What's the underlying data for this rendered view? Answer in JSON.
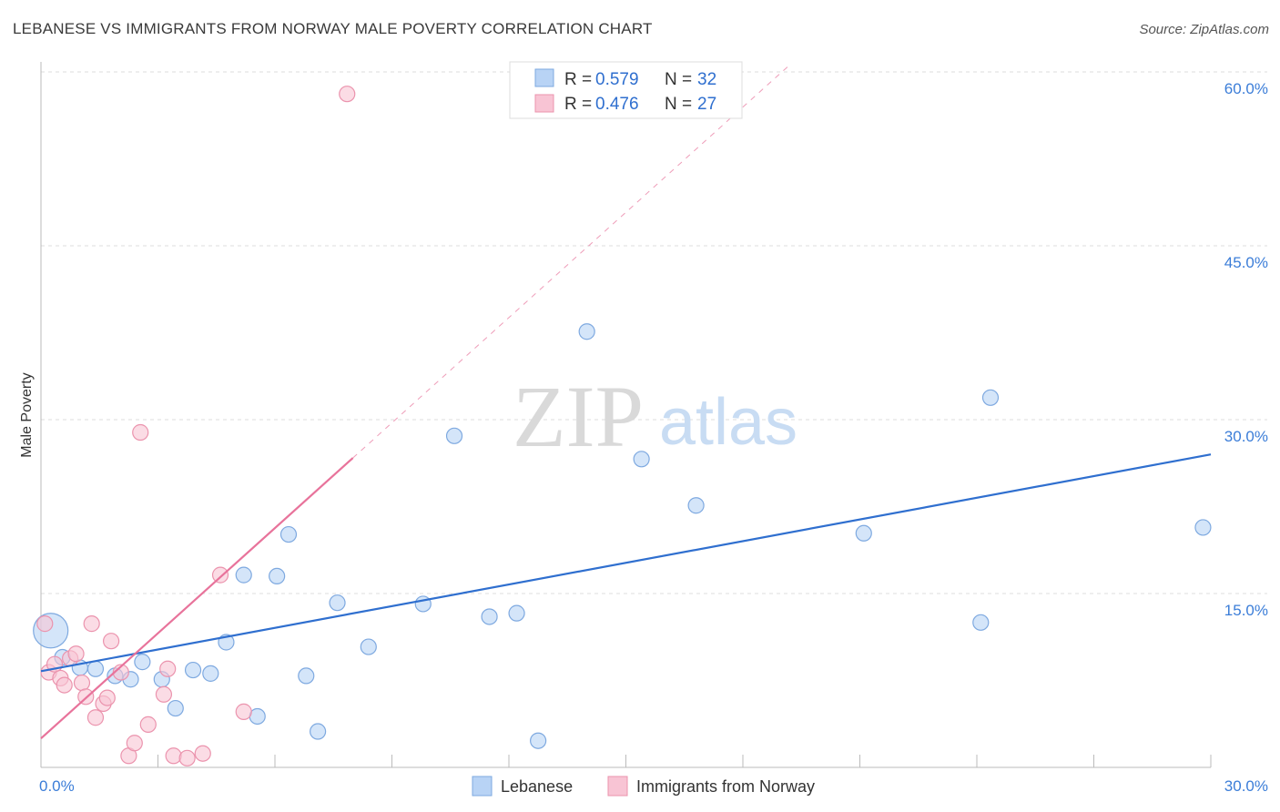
{
  "header": {
    "title": "LEBANESE VS IMMIGRANTS FROM NORWAY MALE POVERTY CORRELATION CHART",
    "source": "Source: ZipAtlas.com"
  },
  "watermark": {
    "zip": "ZIP",
    "atlas": "atlas"
  },
  "colors": {
    "blue_fill": "#b8d3f5",
    "blue_stroke": "#7ea9e0",
    "blue_line": "#2f6fcf",
    "pink_fill": "#f8c4d4",
    "pink_stroke": "#eb93ad",
    "pink_line": "#e8739b",
    "tick_text": "#3b7dd8",
    "grid": "#dcdcdc"
  },
  "chart_data": {
    "type": "scatter",
    "title": "LEBANESE VS IMMIGRANTS FROM NORWAY MALE POVERTY CORRELATION CHART",
    "xlabel": "",
    "ylabel": "Male Poverty",
    "xlim": [
      0,
      30
    ],
    "ylim": [
      0,
      60
    ],
    "x_tick_labels": [
      "0.0%",
      "30.0%"
    ],
    "y_ticks": [
      {
        "value": 15,
        "label": "15.0%"
      },
      {
        "value": 30,
        "label": "30.0%"
      },
      {
        "value": 45,
        "label": "45.0%"
      },
      {
        "value": 60,
        "label": "60.0%"
      }
    ],
    "legend": [
      {
        "name": "Lebanese",
        "r_label": "R = ",
        "r": "0.579",
        "n_label": "N = ",
        "n": "32"
      },
      {
        "name": "Immigrants from Norway",
        "r_label": "R = ",
        "r": "0.476",
        "n_label": "N = ",
        "n": "27"
      }
    ],
    "series": [
      {
        "name": "Lebanese",
        "color": "#b8d3f5",
        "trend": {
          "x0": 0,
          "y0": 8.3,
          "x1": 30,
          "y1": 27.0,
          "dashed_to": null
        },
        "points": [
          {
            "x": 0.25,
            "y": 11.8,
            "big": true
          },
          {
            "x": 0.55,
            "y": 9.5
          },
          {
            "x": 1.0,
            "y": 8.6
          },
          {
            "x": 1.4,
            "y": 8.5
          },
          {
            "x": 1.9,
            "y": 7.9
          },
          {
            "x": 2.3,
            "y": 7.6
          },
          {
            "x": 2.6,
            "y": 9.1
          },
          {
            "x": 3.1,
            "y": 7.6
          },
          {
            "x": 3.45,
            "y": 5.1
          },
          {
            "x": 3.9,
            "y": 8.4
          },
          {
            "x": 4.35,
            "y": 8.1
          },
          {
            "x": 4.75,
            "y": 10.8
          },
          {
            "x": 5.2,
            "y": 16.6
          },
          {
            "x": 5.55,
            "y": 4.4
          },
          {
            "x": 6.05,
            "y": 16.5
          },
          {
            "x": 6.35,
            "y": 20.1
          },
          {
            "x": 6.8,
            "y": 7.9
          },
          {
            "x": 7.1,
            "y": 3.1
          },
          {
            "x": 7.6,
            "y": 14.2
          },
          {
            "x": 8.4,
            "y": 10.4
          },
          {
            "x": 9.8,
            "y": 14.1
          },
          {
            "x": 10.6,
            "y": 28.6
          },
          {
            "x": 11.5,
            "y": 13.0
          },
          {
            "x": 12.2,
            "y": 13.3
          },
          {
            "x": 12.75,
            "y": 2.3
          },
          {
            "x": 14.0,
            "y": 37.6
          },
          {
            "x": 15.4,
            "y": 26.6
          },
          {
            "x": 16.8,
            "y": 22.6
          },
          {
            "x": 21.1,
            "y": 20.2
          },
          {
            "x": 24.1,
            "y": 12.5
          },
          {
            "x": 24.35,
            "y": 31.9
          },
          {
            "x": 29.8,
            "y": 20.7
          }
        ]
      },
      {
        "name": "Immigrants from Norway",
        "color": "#f8c4d4",
        "trend": {
          "x0": 0,
          "y0": 2.5,
          "x1": 8.0,
          "y1": 26.7,
          "dashed_to": {
            "x": 19.2,
            "y": 60.6
          }
        },
        "points": [
          {
            "x": 0.1,
            "y": 12.4
          },
          {
            "x": 0.2,
            "y": 8.2
          },
          {
            "x": 0.35,
            "y": 8.9
          },
          {
            "x": 0.5,
            "y": 7.7
          },
          {
            "x": 0.6,
            "y": 7.1
          },
          {
            "x": 0.75,
            "y": 9.4
          },
          {
            "x": 0.9,
            "y": 9.8
          },
          {
            "x": 1.05,
            "y": 7.3
          },
          {
            "x": 1.15,
            "y": 6.1
          },
          {
            "x": 1.3,
            "y": 12.4
          },
          {
            "x": 1.4,
            "y": 4.3
          },
          {
            "x": 1.6,
            "y": 5.5
          },
          {
            "x": 1.7,
            "y": 6.0
          },
          {
            "x": 1.8,
            "y": 10.9
          },
          {
            "x": 2.05,
            "y": 8.2
          },
          {
            "x": 2.25,
            "y": 1.0
          },
          {
            "x": 2.4,
            "y": 2.1
          },
          {
            "x": 2.55,
            "y": 28.9
          },
          {
            "x": 2.75,
            "y": 3.7
          },
          {
            "x": 3.15,
            "y": 6.3
          },
          {
            "x": 3.25,
            "y": 8.5
          },
          {
            "x": 3.4,
            "y": 1.0
          },
          {
            "x": 3.75,
            "y": 0.8
          },
          {
            "x": 4.15,
            "y": 1.2
          },
          {
            "x": 4.6,
            "y": 16.6
          },
          {
            "x": 5.2,
            "y": 4.8
          },
          {
            "x": 7.85,
            "y": 58.1
          }
        ]
      }
    ]
  }
}
